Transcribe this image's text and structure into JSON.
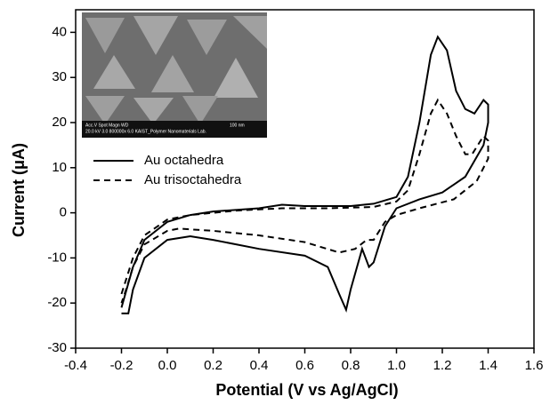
{
  "chart_data": {
    "type": "line",
    "xlabel": "Potential (V vs Ag/AgCl)",
    "ylabel": "Current (μA)",
    "xlim": [
      -0.4,
      1.6
    ],
    "xticks": [
      -0.4,
      -0.2,
      {
        "value": 0,
        "label": "0.0"
      },
      0.2,
      0.4,
      0.6,
      0.8,
      {
        "value": 1,
        "label": "1.0"
      },
      1.2,
      1.4,
      1.6
    ],
    "ylim": [
      -30,
      45
    ],
    "yticks": [
      -30,
      -20,
      -10,
      0,
      10,
      20,
      30,
      40
    ],
    "legend": "upper-left",
    "inset_labels": [
      "Acc.V   Spot Magn    WD",
      "20.0 kV 3.0   800000x 6.0   KAIST_Polymer Nanomaterials Lab.",
      "100 nm"
    ],
    "series": [
      {
        "name": "Au octahedra",
        "color": "#000000",
        "dash": "solid",
        "x": [
          -0.2,
          -0.15,
          -0.1,
          0,
          0.1,
          0.2,
          0.4,
          0.5,
          0.6,
          0.8,
          0.9,
          1.0,
          1.05,
          1.1,
          1.15,
          1.18,
          1.22,
          1.26,
          1.3,
          1.34,
          1.38,
          1.4,
          1.4,
          1.38,
          1.3,
          1.2,
          1.1,
          1.0,
          0.95,
          0.9,
          0.88,
          0.85,
          0.8,
          0.78,
          0.75,
          0.7,
          0.6,
          0.4,
          0.2,
          0.1,
          0.0,
          -0.1,
          -0.15,
          -0.17,
          -0.2
        ],
        "values": [
          -21,
          -12,
          -6,
          -2,
          -0.5,
          0.3,
          1,
          1.8,
          1.5,
          1.5,
          2,
          3.5,
          8,
          20,
          35,
          39,
          36,
          27,
          23,
          22,
          25,
          24,
          20,
          15,
          8,
          4.5,
          3,
          1,
          -3,
          -11,
          -12,
          -8,
          -17,
          -21.5,
          -18,
          -12,
          -9.5,
          -8,
          -6,
          -5.2,
          -6,
          -10,
          -17,
          -22.3,
          -22.3
        ]
      },
      {
        "name": "Au trisoctahedra",
        "color": "#000000",
        "dash": "dashed",
        "x": [
          -0.2,
          -0.15,
          -0.1,
          0,
          0.1,
          0.3,
          0.5,
          0.7,
          0.9,
          1.0,
          1.05,
          1.1,
          1.15,
          1.18,
          1.22,
          1.26,
          1.3,
          1.33,
          1.38,
          1.4,
          1.4,
          1.35,
          1.25,
          1.1,
          1.0,
          0.95,
          0.9,
          0.87,
          0.82,
          0.75,
          0.6,
          0.4,
          0.2,
          0.05,
          0,
          -0.1,
          -0.15,
          -0.18,
          -0.2
        ],
        "values": [
          -18,
          -10,
          -5,
          -1.5,
          -0.5,
          0.5,
          1,
          1,
          1.3,
          2.5,
          5,
          13,
          22,
          25,
          22,
          17,
          13,
          13,
          17,
          16,
          12,
          7,
          3,
          1,
          -0.5,
          -2,
          -6,
          -6,
          -8,
          -8.8,
          -6.5,
          -5,
          -4,
          -3.5,
          -4,
          -7,
          -12,
          -17,
          -20
        ]
      }
    ]
  }
}
